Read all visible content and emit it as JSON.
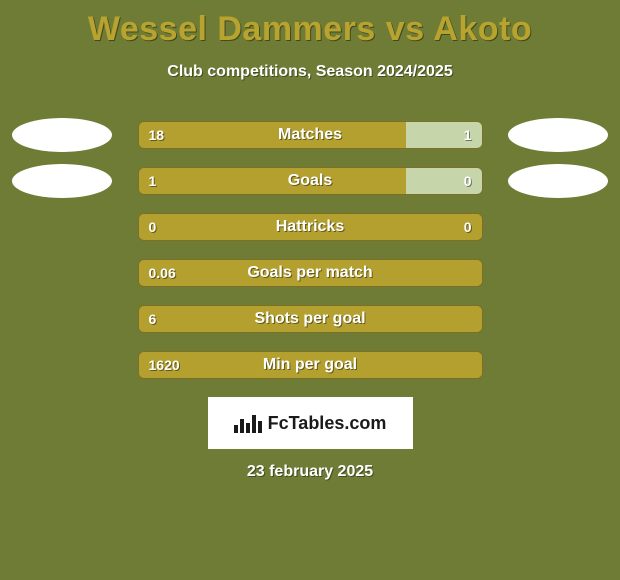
{
  "colors": {
    "background": "#6f7c36",
    "title": "#b8a32f",
    "subtitle": "#ffffff",
    "bar_track": "#a79432",
    "bar_left_fill": "#b4a02e",
    "bar_right_fill": "#c7d6aa",
    "bar_text": "#ffffff",
    "avatar": "#ffffff",
    "logo_bg": "#ffffff",
    "logo_text": "#1a1a1a",
    "footer_text": "#ffffff"
  },
  "title": "Wessel Dammers vs Akoto",
  "subtitle": "Club competitions, Season 2024/2025",
  "rows": [
    {
      "label": "Matches",
      "left_val": "18",
      "right_val": "1",
      "left_pct": 78,
      "right_pct": 22,
      "show_avatars": true
    },
    {
      "label": "Goals",
      "left_val": "1",
      "right_val": "0",
      "left_pct": 78,
      "right_pct": 22,
      "show_avatars": true
    },
    {
      "label": "Hattricks",
      "left_val": "0",
      "right_val": "0",
      "left_pct": 100,
      "right_pct": 0,
      "show_avatars": false
    },
    {
      "label": "Goals per match",
      "left_val": "0.06",
      "right_val": "",
      "left_pct": 100,
      "right_pct": 0,
      "show_avatars": false
    },
    {
      "label": "Shots per goal",
      "left_val": "6",
      "right_val": "",
      "left_pct": 100,
      "right_pct": 0,
      "show_avatars": false
    },
    {
      "label": "Min per goal",
      "left_val": "1620",
      "right_val": "",
      "left_pct": 100,
      "right_pct": 0,
      "show_avatars": false
    }
  ],
  "logo_text": "FcTables.com",
  "footer_date": "23 february 2025",
  "typography": {
    "title_fontsize": 34,
    "subtitle_fontsize": 16,
    "bar_label_fontsize": 16,
    "bar_value_fontsize": 14,
    "footer_fontsize": 16
  }
}
